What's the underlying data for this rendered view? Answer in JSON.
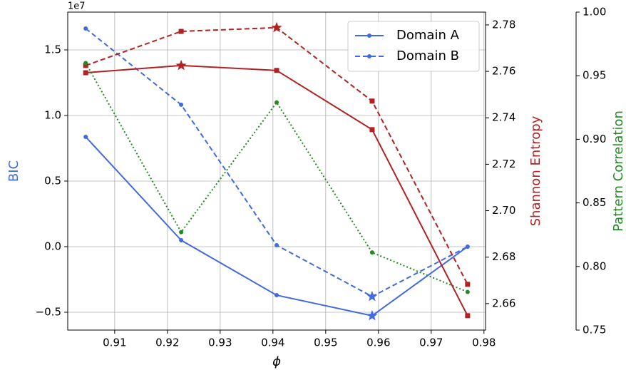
{
  "chart_data": {
    "type": "line",
    "x_label": "ϕ",
    "y_label": "BIC",
    "y2_label": "Shannon Entropy",
    "y3_label": "Pattern Correlation",
    "y_offset_label": "1e7",
    "x": [
      0.9045,
      0.9226,
      0.9407,
      0.9588,
      0.9769
    ],
    "xlim": [
      0.9011,
      0.9803
    ],
    "xticks": [
      0.91,
      0.92,
      0.93,
      0.94,
      0.95,
      0.96,
      0.97,
      0.98
    ],
    "ylim": [
      -0.636,
      1.788
    ],
    "yticks": [
      {
        "value": -0.5,
        "label": "−0.5"
      },
      {
        "value": 0,
        "label": "0.0"
      },
      0.5,
      {
        "value": 1,
        "label": "1.0"
      },
      1.5
    ],
    "y2lim": [
      2.6486,
      2.7855
    ],
    "y2ticks": [
      2.66,
      2.68,
      {
        "value": 2.7,
        "label": "2.70"
      },
      2.72,
      2.74,
      2.76,
      2.78
    ],
    "y3lim": [
      0.75,
      1.0
    ],
    "y3ticks": [
      0.75,
      {
        "value": 0.8,
        "label": "0.80"
      },
      0.85,
      {
        "value": 0.9,
        "label": "0.90"
      },
      0.95,
      {
        "value": 1,
        "label": "1.00"
      }
    ],
    "grid": true,
    "legend": "upper right",
    "series": [
      {
        "name": "Domain A",
        "color": "#4169e1",
        "axis": "y",
        "linestyle": "solid",
        "marker": "circle",
        "star_index": 3,
        "values": [
          0.837,
          0.049,
          -0.37,
          -0.527,
          0.0
        ]
      },
      {
        "name": "Domain B",
        "color": "#4169e1",
        "axis": "y",
        "linestyle": "dashed",
        "marker": "circle",
        "star_index": 3,
        "values": [
          1.663,
          1.082,
          0.011,
          -0.38,
          0.0
        ]
      },
      {
        "color": "#b22222",
        "axis": "y2",
        "linestyle": "solid",
        "marker": "square",
        "star_index": 1,
        "values": [
          2.7594,
          2.7625,
          2.7604,
          2.7349,
          2.6548
        ]
      },
      {
        "color": "#b22222",
        "axis": "y2",
        "linestyle": "dashed",
        "marker": "square",
        "star_index": 2,
        "values": [
          2.7625,
          2.7772,
          2.7788,
          2.7472,
          2.6683
        ]
      },
      {
        "color": "#228b22",
        "axis": "y3",
        "linestyle": "dotted",
        "marker": "circle",
        "values": [
          0.96,
          0.827,
          0.929,
          0.811,
          0.78
        ]
      }
    ]
  }
}
